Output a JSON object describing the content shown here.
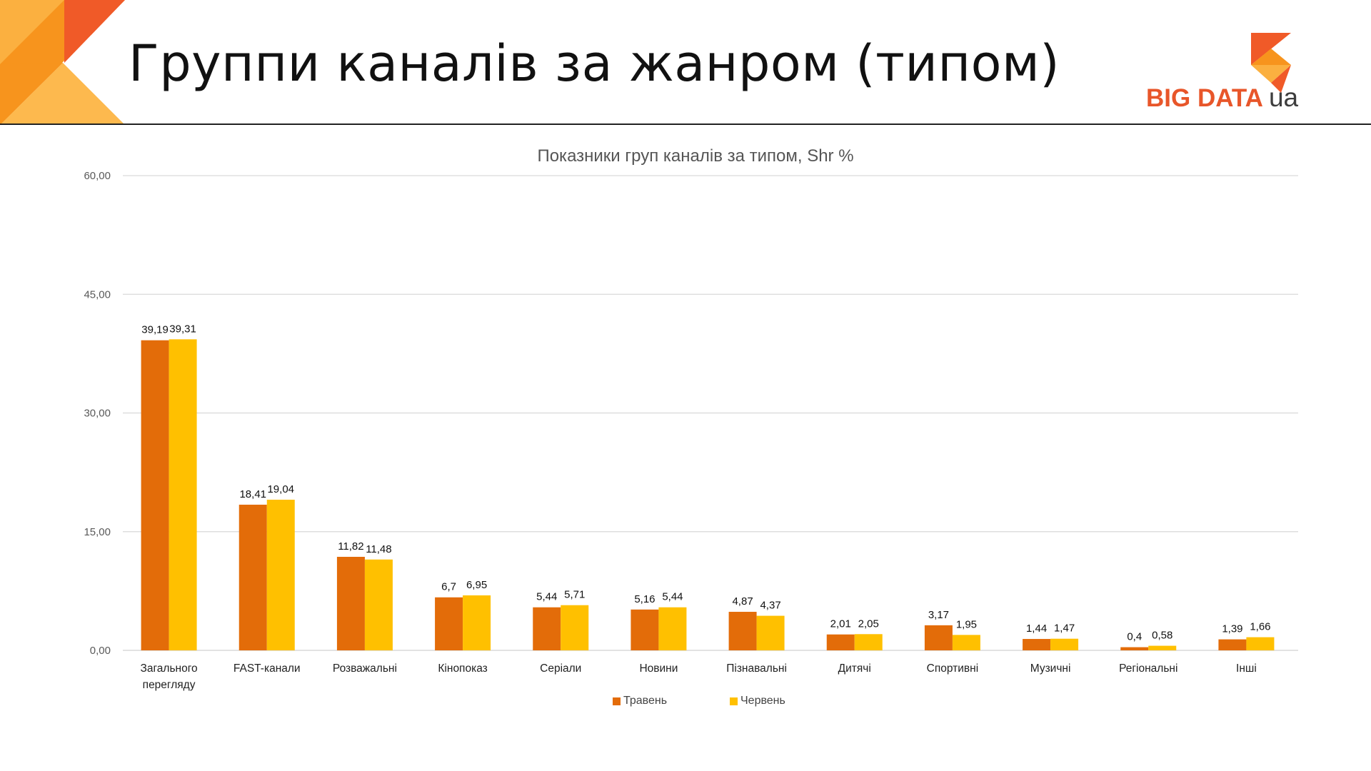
{
  "slide": {
    "title": "Группи каналів за жанром (типом)"
  },
  "logo": {
    "text": "BIG DATA",
    "suffix": "ua"
  },
  "colors": {
    "series1": "#e36c09",
    "series2": "#ffc000",
    "accent_orange": "#f05a28",
    "accent_light": "#fbb040",
    "grid": "#d9d9d9"
  },
  "chart_data": {
    "type": "bar",
    "title": "Показники груп каналів за типом, Shr %",
    "categories": [
      [
        "Загального",
        "перегляду"
      ],
      [
        "FAST-канали"
      ],
      [
        "Розважальні"
      ],
      [
        "Кінопоказ"
      ],
      [
        "Серіали"
      ],
      [
        "Новини"
      ],
      [
        "Пізнавальні"
      ],
      [
        "Дитячі"
      ],
      [
        "Спортивні"
      ],
      [
        "Музичні"
      ],
      [
        "Регіональні"
      ],
      [
        "Інші"
      ]
    ],
    "series": [
      {
        "name": "Травень",
        "values": [
          39.19,
          18.41,
          11.82,
          6.7,
          5.44,
          5.16,
          4.87,
          2.01,
          3.17,
          1.44,
          0.4,
          1.39
        ],
        "labels": [
          "39,19",
          "18,41",
          "11,82",
          "6,7",
          "5,44",
          "5,16",
          "4,87",
          "2,01",
          "3,17",
          "1,44",
          "0,4",
          "1,39"
        ]
      },
      {
        "name": "Червень",
        "values": [
          39.31,
          19.04,
          11.48,
          6.95,
          5.71,
          5.44,
          4.37,
          2.05,
          1.95,
          1.47,
          0.58,
          1.66
        ],
        "labels": [
          "39,31",
          "19,04",
          "11,48",
          "6,95",
          "5,71",
          "5,44",
          "4,37",
          "2,05",
          "1,95",
          "1,47",
          "0,58",
          "1,66"
        ]
      }
    ],
    "yticks": [
      "0,00",
      "15,00",
      "30,00",
      "45,00",
      "60,00"
    ],
    "ylim": [
      0,
      60
    ],
    "grid": true,
    "legend_position": "bottom"
  }
}
